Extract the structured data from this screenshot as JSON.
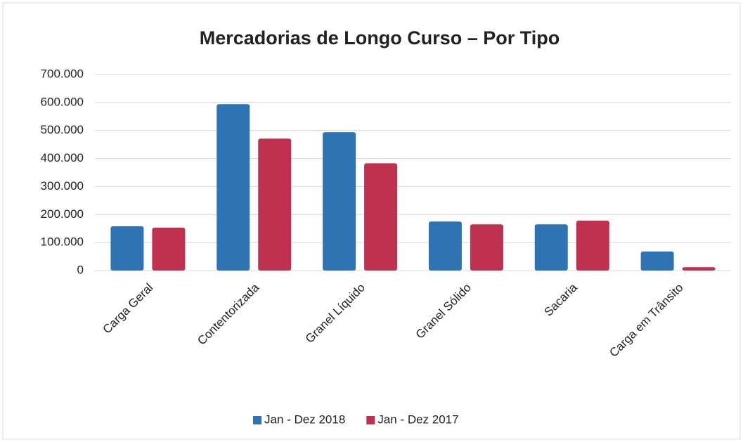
{
  "chart_data": {
    "type": "bar",
    "title": "Mercadorias de Longo Curso – Por Tipo",
    "categories": [
      "Carga Geral",
      "Contentorizada",
      "Granel Líquido",
      "Granel Sólido",
      "Sacaria",
      "Carga em Trânsito"
    ],
    "series": [
      {
        "name": "Jan - Dez 2018",
        "color": "#2e74b5",
        "values": [
          158000,
          594000,
          494000,
          175000,
          165000,
          68000
        ]
      },
      {
        "name": "Jan - Dez 2017",
        "color": "#c0304f",
        "values": [
          153000,
          471000,
          383000,
          165000,
          178000,
          12000
        ]
      }
    ],
    "ylim": [
      0,
      700000
    ],
    "yticks": [
      0,
      {
        "value": 100000,
        "label": "100.000"
      },
      {
        "value": 200000,
        "label": "200.000"
      },
      {
        "value": 300000,
        "label": "300.000"
      },
      {
        "value": 400000,
        "label": "400.000"
      },
      {
        "value": 500000,
        "label": "500.000"
      },
      {
        "value": 600000,
        "label": "600.000"
      },
      {
        "value": 700000,
        "label": "700.000"
      }
    ],
    "grid": true,
    "legend": "bottom"
  }
}
